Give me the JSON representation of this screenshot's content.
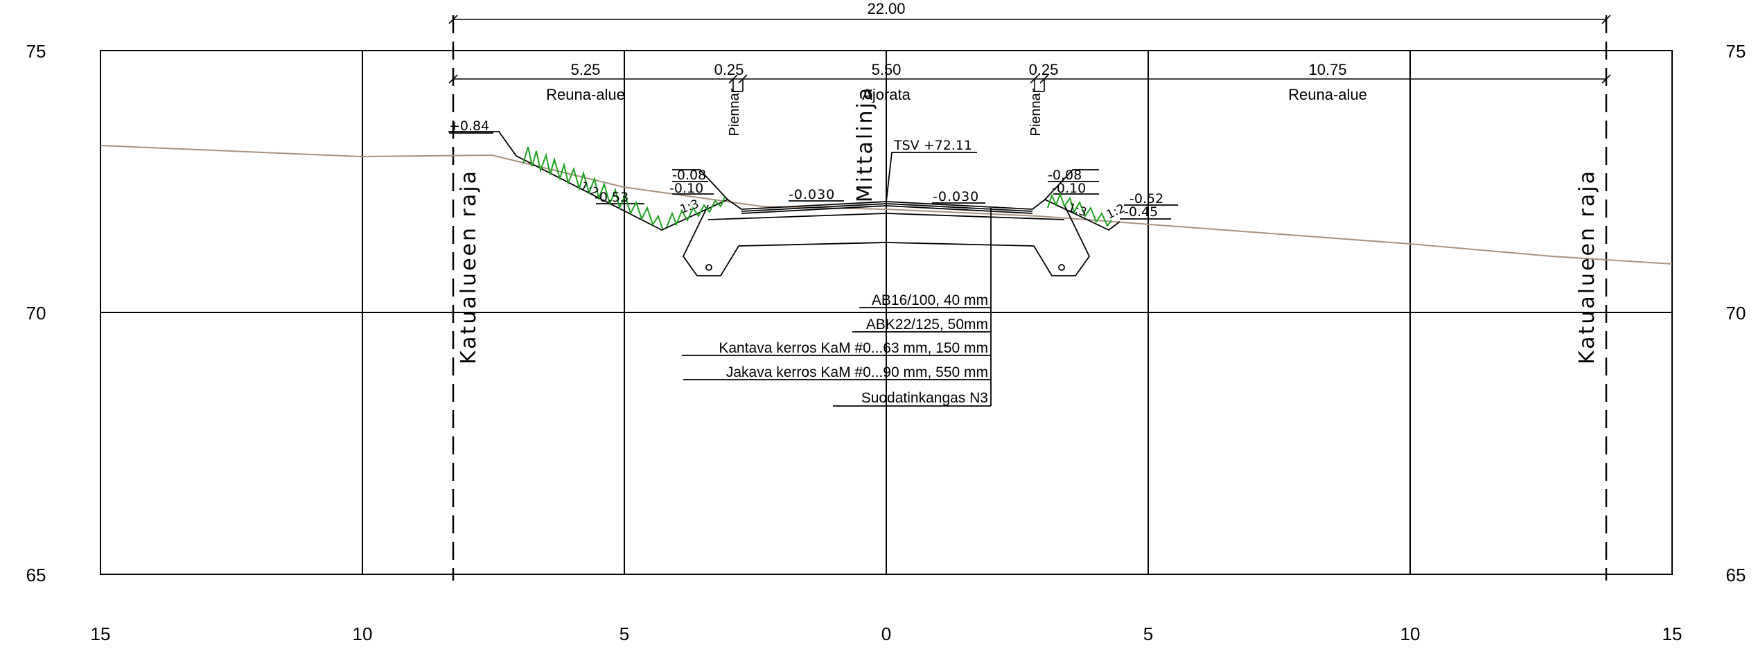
{
  "axes": {
    "y_ticks": [
      "75",
      "70",
      "65"
    ],
    "x_ticks": [
      "15",
      "10",
      "5",
      "0",
      "5",
      "10",
      "15"
    ]
  },
  "dimensions": {
    "total": "22.00",
    "segments": [
      "5.25",
      "0.25",
      "5.50",
      "0.25",
      "10.75"
    ]
  },
  "zones": {
    "left": "Reuna-alue",
    "carriageway": "Ajorata",
    "right": "Reuna-alue",
    "shoulder_left": "Piennar",
    "shoulder_right": "Piennar"
  },
  "boundaries": {
    "left": "Katualueen raja",
    "right": "Katualueen raja",
    "centerline": "Mittalinja"
  },
  "levels": {
    "tsv": "TSV +72.11",
    "crossfall_left": "-0.030",
    "crossfall_right": "-0.030",
    "left_top": "+0.84",
    "left_ditch": "-0.53",
    "left_curb_a": "-0.08",
    "left_curb_b": "-0.10",
    "right_curb_a": "-0.08",
    "right_curb_b": "-0.10",
    "right_a": "-0.52",
    "right_b": "-0.45",
    "slope_left_outer": "1:2",
    "slope_left_inner": "1:3",
    "slope_right_inner": "1:3",
    "slope_right_outer": "1:2"
  },
  "layers": [
    "AB16/100, 40 mm",
    "ABK22/125, 50mm",
    "Kantava kerros KaM #0...63 mm, 150 mm",
    "Jakava kerros KaM #0...90 mm, 550 mm",
    "Suodatinkangas N3"
  ],
  "colors": {
    "ground": "#a8917e",
    "grass": "#1ea01e",
    "line": "#000000"
  }
}
